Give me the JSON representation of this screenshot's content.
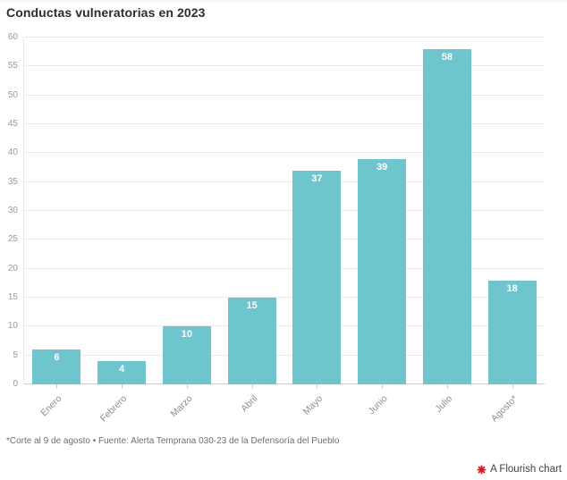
{
  "header": {
    "title": "Conductas vulneratorias en 2023"
  },
  "footer": {
    "footnote": "*Corte al 9 de agosto  • Fuente: Alerta Temprana 030-23 de la Defensoría del Pueblo",
    "attribution_label": "A Flourish chart",
    "attribution_icon": "flourish-logo-icon"
  },
  "colors": {
    "bar": "#6fc5ce",
    "grid": "#e9e9e9",
    "axis": "#cfcfcf",
    "tick_text": "#9a9a9a",
    "xlabel": "#8f8f8f",
    "value_label": "#ffffff",
    "title": "#2d2d2d",
    "footnote": "#6f6f6f",
    "attribution": "#3f3f3f",
    "flourish_red": "#d21f26"
  },
  "chart_data": {
    "type": "bar",
    "title": "Conductas vulneratorias en 2023",
    "categories": [
      "Enero",
      "Febrero",
      "Marzo",
      "Abril",
      "Mayo",
      "Junio",
      "Julio",
      "Agosto*"
    ],
    "values": [
      6,
      4,
      10,
      15,
      37,
      39,
      58,
      18
    ],
    "xlabel": "",
    "ylabel": "",
    "ylim": [
      0,
      60
    ],
    "ytick_step": 5,
    "grid": true,
    "legend": "none",
    "bar_color": "#6fc5ce"
  }
}
